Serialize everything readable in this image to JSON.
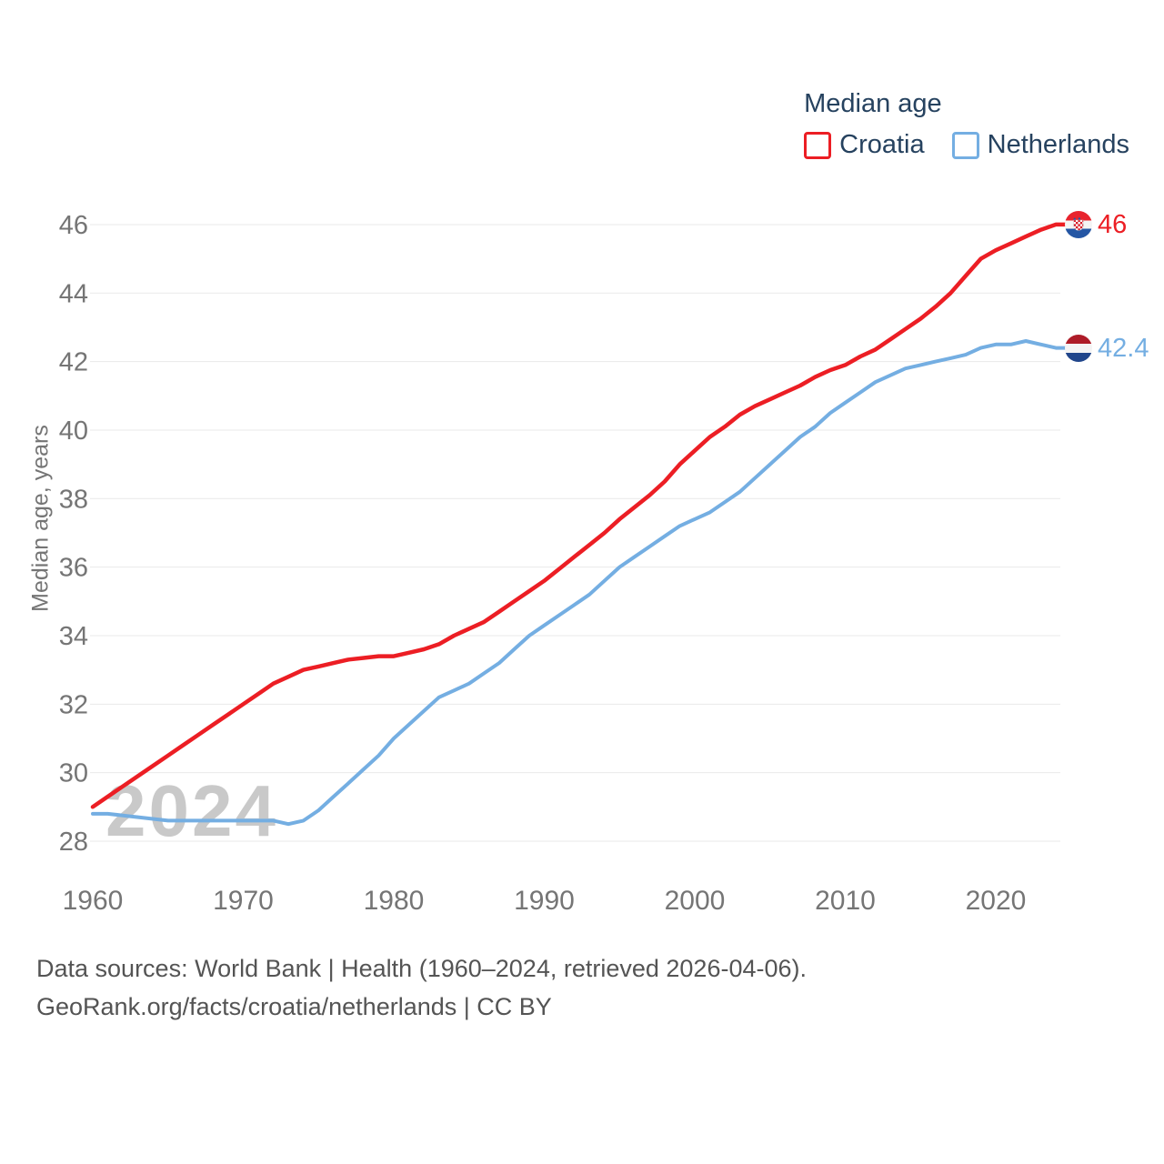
{
  "legend": {
    "title": "Median age",
    "items": [
      {
        "label": "Croatia",
        "color": "#ec1e24"
      },
      {
        "label": "Netherlands",
        "color": "#74aee2"
      }
    ]
  },
  "y_axis": {
    "title": "Median age, years",
    "ticks": [
      "28",
      "30",
      "32",
      "34",
      "36",
      "38",
      "40",
      "42",
      "44",
      "46"
    ]
  },
  "x_axis": {
    "ticks": [
      "1960",
      "1970",
      "1980",
      "1990",
      "2000",
      "2010",
      "2020"
    ]
  },
  "end_labels": {
    "croatia": {
      "value": "46",
      "flag": "croatia-flag-icon"
    },
    "netherlands": {
      "value": "42.4",
      "flag": "netherlands-flag-icon"
    }
  },
  "watermark": "2024",
  "footer": {
    "line1": "Data sources: World Bank | Health (1960–2024, retrieved 2026-04-06).",
    "line2": "GeoRank.org/facts/croatia/netherlands | CC BY"
  },
  "colors": {
    "croatia": "#ec1e24",
    "netherlands": "#74aee2",
    "grid": "#e9e9e9",
    "tick_text": "#757575",
    "legend_text": "#26425f",
    "watermark": "#c9c9c9"
  },
  "chart_data": {
    "type": "line",
    "title": "Median age",
    "xlabel": "",
    "ylabel": "Median age, years",
    "ylim": [
      28,
      46
    ],
    "xlim": [
      1960,
      2024
    ],
    "grid": "horizontal",
    "legend_position": "top-right",
    "x": [
      1960,
      1961,
      1962,
      1963,
      1964,
      1965,
      1966,
      1967,
      1968,
      1969,
      1970,
      1971,
      1972,
      1973,
      1974,
      1975,
      1976,
      1977,
      1978,
      1979,
      1980,
      1981,
      1982,
      1983,
      1984,
      1985,
      1986,
      1987,
      1988,
      1989,
      1990,
      1991,
      1992,
      1993,
      1994,
      1995,
      1996,
      1997,
      1998,
      1999,
      2000,
      2001,
      2002,
      2003,
      2004,
      2005,
      2006,
      2007,
      2008,
      2009,
      2010,
      2011,
      2012,
      2013,
      2014,
      2015,
      2016,
      2017,
      2018,
      2019,
      2020,
      2021,
      2022,
      2023,
      2024
    ],
    "series": [
      {
        "name": "Croatia",
        "color": "#ec1e24",
        "stroke_width": 4.5,
        "end_label": "46",
        "values": [
          29.0,
          29.3,
          29.6,
          29.9,
          30.2,
          30.5,
          30.8,
          31.1,
          31.4,
          31.7,
          32.0,
          32.3,
          32.6,
          32.8,
          33.0,
          33.1,
          33.2,
          33.3,
          33.35,
          33.4,
          33.4,
          33.5,
          33.6,
          33.75,
          34.0,
          34.2,
          34.4,
          34.7,
          35.0,
          35.3,
          35.6,
          35.95,
          36.3,
          36.65,
          37.0,
          37.4,
          37.75,
          38.1,
          38.5,
          39.0,
          39.4,
          39.8,
          40.1,
          40.45,
          40.7,
          40.9,
          41.1,
          41.3,
          41.55,
          41.75,
          41.9,
          42.15,
          42.35,
          42.65,
          42.95,
          43.25,
          43.6,
          44.0,
          44.5,
          45.0,
          45.25,
          45.45,
          45.65,
          45.85,
          46.0
        ]
      },
      {
        "name": "Netherlands",
        "color": "#74aee2",
        "stroke_width": 4,
        "end_label": "42.4",
        "values": [
          28.8,
          28.8,
          28.75,
          28.7,
          28.65,
          28.6,
          28.6,
          28.6,
          28.6,
          28.6,
          28.6,
          28.6,
          28.6,
          28.5,
          28.6,
          28.9,
          29.3,
          29.7,
          30.1,
          30.5,
          31.0,
          31.4,
          31.8,
          32.2,
          32.4,
          32.6,
          32.9,
          33.2,
          33.6,
          34.0,
          34.3,
          34.6,
          34.9,
          35.2,
          35.6,
          36.0,
          36.3,
          36.6,
          36.9,
          37.2,
          37.4,
          37.6,
          37.9,
          38.2,
          38.6,
          39.0,
          39.4,
          39.8,
          40.1,
          40.5,
          40.8,
          41.1,
          41.4,
          41.6,
          41.8,
          41.9,
          42.0,
          42.1,
          42.2,
          42.4,
          42.5,
          42.5,
          42.6,
          42.5,
          42.4
        ]
      }
    ]
  }
}
